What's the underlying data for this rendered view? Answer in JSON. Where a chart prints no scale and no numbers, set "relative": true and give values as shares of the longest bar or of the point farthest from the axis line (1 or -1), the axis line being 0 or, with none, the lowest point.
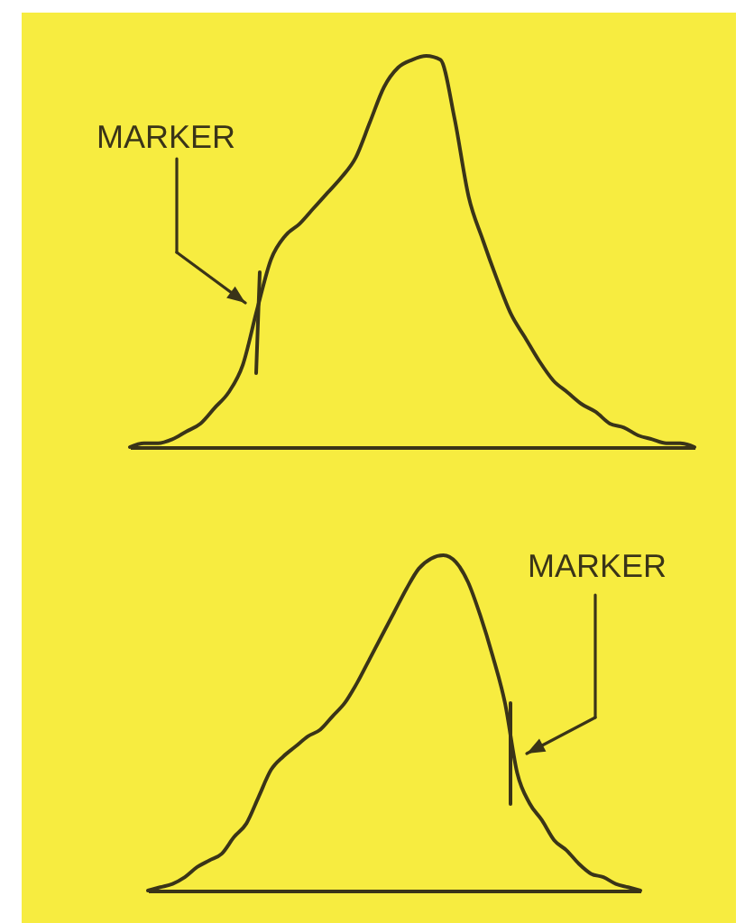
{
  "chart_data": [
    {
      "type": "line",
      "categories": [
        null,
        null,
        null,
        null,
        null,
        null,
        null,
        null,
        null,
        null,
        null,
        null,
        null,
        null,
        null,
        null,
        null,
        null,
        null,
        null,
        null,
        null,
        null,
        null,
        null,
        null,
        null,
        null,
        null,
        null,
        null,
        null,
        null,
        null,
        null,
        null,
        null,
        null,
        null,
        null,
        null
      ],
      "series": [
        {
          "color": "#3a3418",
          "values": [
            0,
            0.01,
            0.01,
            0.02,
            0.04,
            0.06,
            0.1,
            0.14,
            0.21,
            0.35,
            0.48,
            0.54,
            0.57,
            0.61,
            0.65,
            0.69,
            0.74,
            0.83,
            0.92,
            0.97,
            0.99,
            1,
            0.99,
            0.84,
            0.64,
            0.53,
            0.43,
            0.34,
            0.28,
            0.22,
            0.17,
            0.14,
            0.11,
            0.09,
            0.06,
            0.05,
            0.03,
            0.02,
            0.01,
            0.01,
            0
          ]
        }
      ],
      "relative": true,
      "annotations": [
        "MARKER"
      ]
    },
    {
      "type": "line",
      "categories": [
        null,
        null,
        null,
        null,
        null,
        null,
        null,
        null,
        null,
        null,
        null,
        null,
        null,
        null,
        null,
        null,
        null,
        null,
        null,
        null,
        null,
        null,
        null,
        null,
        null,
        null,
        null,
        null,
        null,
        null,
        null,
        null,
        null,
        null,
        null,
        null,
        null,
        null,
        null,
        null,
        null
      ],
      "series": [
        {
          "color": "#3a3418",
          "values": [
            0,
            0.01,
            0.02,
            0.04,
            0.07,
            0.09,
            0.11,
            0.16,
            0.2,
            0.28,
            0.36,
            0.4,
            0.43,
            0.46,
            0.48,
            0.52,
            0.56,
            0.62,
            0.69,
            0.76,
            0.83,
            0.9,
            0.96,
            0.99,
            1,
            0.98,
            0.92,
            0.82,
            0.7,
            0.56,
            0.35,
            0.26,
            0.21,
            0.15,
            0.12,
            0.08,
            0.05,
            0.04,
            0.02,
            0.01,
            0
          ]
        }
      ],
      "relative": true,
      "annotations": [
        "MARKER"
      ]
    }
  ]
}
